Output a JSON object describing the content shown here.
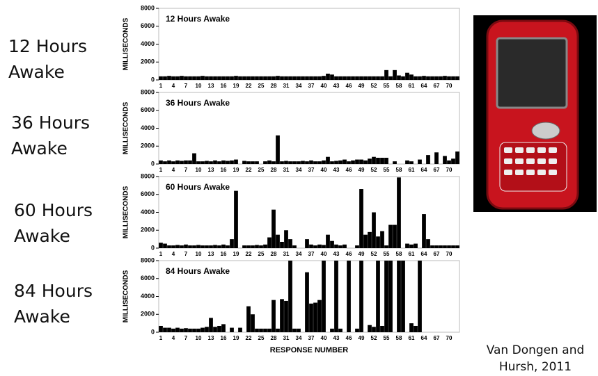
{
  "labels": [
    "12 Hours Awake",
    "36 Hours Awake",
    "60 Hours Awake",
    "84 Hours Awake"
  ],
  "citation": "Van Dongen and Hursh, 2011",
  "chart_data": [
    {
      "type": "bar",
      "title": "12 Hours Awake",
      "ylabel": "MILLISECONDS",
      "color": "#000000",
      "categories": [
        "1",
        null,
        null,
        "4",
        null,
        null,
        "7",
        null,
        null,
        "10",
        null,
        null,
        "13",
        null,
        null,
        "16",
        null,
        null,
        "19",
        null,
        null,
        "22",
        null,
        null,
        "25",
        null,
        null,
        "28",
        null,
        null,
        "31",
        null,
        null,
        "34",
        null,
        null,
        "37",
        null,
        null,
        "40",
        null,
        null,
        "43",
        null,
        null,
        "46",
        null,
        null,
        "49",
        null,
        null,
        "52",
        null,
        null,
        "55",
        null,
        null,
        "58",
        null,
        null,
        "61",
        null,
        null,
        "64",
        null,
        null,
        "67",
        null,
        null,
        "70",
        null,
        null
      ],
      "values": [
        400,
        400,
        450,
        400,
        400,
        450,
        400,
        400,
        400,
        400,
        450,
        400,
        400,
        400,
        400,
        400,
        400,
        400,
        450,
        400,
        400,
        400,
        400,
        400,
        400,
        400,
        400,
        400,
        450,
        400,
        400,
        400,
        400,
        400,
        400,
        400,
        400,
        400,
        400,
        450,
        700,
        600,
        400,
        400,
        400,
        400,
        400,
        400,
        400,
        400,
        400,
        400,
        400,
        400,
        1100,
        400,
        1100,
        500,
        400,
        800,
        600,
        400,
        400,
        450,
        400,
        400,
        400,
        400,
        450,
        400,
        400,
        400
      ],
      "ylim": [
        0,
        8000
      ],
      "yticks": [
        0,
        2000,
        4000,
        6000,
        8000
      ]
    },
    {
      "type": "bar",
      "title": "36 Hours Awake",
      "ylabel": "MILLISECONDS",
      "color": "#000000",
      "categories": [
        "1",
        null,
        null,
        "4",
        null,
        null,
        "7",
        null,
        null,
        "10",
        null,
        null,
        "13",
        null,
        null,
        "16",
        null,
        null,
        "19",
        null,
        null,
        "22",
        null,
        null,
        "25",
        null,
        null,
        "28",
        null,
        null,
        "31",
        null,
        null,
        "34",
        null,
        null,
        "37",
        null,
        null,
        "40",
        null,
        null,
        "43",
        null,
        null,
        "46",
        null,
        null,
        "49",
        null,
        null,
        "52",
        null,
        null,
        "55",
        null,
        null,
        "58",
        null,
        null,
        "61",
        null,
        null,
        "64",
        null,
        null,
        "67",
        null,
        null,
        "70",
        null,
        null
      ],
      "values": [
        400,
        300,
        400,
        300,
        400,
        350,
        400,
        400,
        1200,
        300,
        300,
        350,
        300,
        400,
        300,
        400,
        350,
        400,
        500,
        0,
        350,
        300,
        300,
        300,
        0,
        300,
        400,
        300,
        3200,
        300,
        350,
        300,
        300,
        300,
        350,
        300,
        400,
        300,
        300,
        400,
        800,
        300,
        350,
        400,
        500,
        300,
        400,
        500,
        500,
        400,
        600,
        800,
        700,
        700,
        700,
        0,
        300,
        0,
        0,
        400,
        300,
        0,
        500,
        0,
        1000,
        0,
        1300,
        0,
        900,
        400,
        600,
        1400
      ],
      "ylim": [
        0,
        8000
      ],
      "yticks": [
        0,
        2000,
        4000,
        6000,
        8000
      ]
    },
    {
      "type": "bar",
      "title": "60 Hours Awake",
      "ylabel": "MILLISECONDS",
      "color": "#000000",
      "categories": [
        "1",
        null,
        null,
        "4",
        null,
        null,
        "7",
        null,
        null,
        "10",
        null,
        null,
        "13",
        null,
        null,
        "16",
        null,
        null,
        "19",
        null,
        null,
        "22",
        null,
        null,
        "25",
        null,
        null,
        "28",
        null,
        null,
        "31",
        null,
        null,
        "34",
        null,
        null,
        "37",
        null,
        null,
        "40",
        null,
        null,
        "43",
        null,
        null,
        "46",
        null,
        null,
        "49",
        null,
        null,
        "52",
        null,
        null,
        "55",
        null,
        null,
        "58",
        null,
        null,
        "61",
        null,
        null,
        "64",
        null,
        null,
        "67",
        null,
        null,
        "70",
        null,
        null
      ],
      "values": [
        600,
        500,
        300,
        300,
        350,
        300,
        400,
        300,
        300,
        350,
        300,
        300,
        300,
        350,
        300,
        400,
        300,
        1000,
        6400,
        0,
        300,
        300,
        300,
        350,
        300,
        400,
        1200,
        4300,
        1500,
        700,
        2000,
        1000,
        300,
        0,
        0,
        1000,
        400,
        300,
        400,
        350,
        1500,
        800,
        400,
        300,
        400,
        0,
        0,
        300,
        6600,
        1500,
        1800,
        4000,
        1300,
        1900,
        300,
        2600,
        2600,
        7900,
        0,
        500,
        400,
        500,
        0,
        3800,
        1000,
        300,
        300,
        300,
        300,
        300,
        300,
        300
      ],
      "ylim": [
        0,
        8000
      ],
      "yticks": [
        0,
        2000,
        4000,
        6000,
        8000
      ]
    },
    {
      "type": "bar",
      "title": "84 Hours Awake",
      "ylabel": "MILLISECONDS",
      "xlabel": "RESPONSE NUMBER",
      "color": "#000000",
      "categories": [
        "1",
        null,
        null,
        "4",
        null,
        null,
        "7",
        null,
        null,
        "10",
        null,
        null,
        "13",
        null,
        null,
        "16",
        null,
        null,
        "19",
        null,
        null,
        "22",
        null,
        null,
        "25",
        null,
        null,
        "28",
        null,
        null,
        "31",
        null,
        null,
        "34",
        null,
        null,
        "37",
        null,
        null,
        "40",
        null,
        null,
        "43",
        null,
        null,
        "46",
        null,
        null,
        "49",
        null,
        null,
        "52",
        null,
        null,
        "55",
        null,
        null,
        "58",
        null,
        null,
        "61",
        null,
        null,
        "64",
        null,
        null,
        "67",
        null,
        null,
        "70",
        null,
        null
      ],
      "values": [
        700,
        500,
        500,
        400,
        500,
        400,
        450,
        400,
        400,
        400,
        500,
        600,
        1600,
        600,
        700,
        900,
        0,
        500,
        0,
        500,
        0,
        2900,
        2000,
        400,
        400,
        400,
        400,
        3600,
        400,
        3700,
        3500,
        8000,
        400,
        400,
        0,
        6700,
        3200,
        3300,
        3600,
        8000,
        0,
        400,
        8000,
        400,
        0,
        8000,
        0,
        400,
        8000,
        0,
        800,
        600,
        8000,
        700,
        8000,
        8000,
        0,
        8000,
        8000,
        0,
        1000,
        700,
        8000,
        0,
        0,
        0,
        0,
        0,
        0,
        0,
        0,
        0
      ],
      "ylim": [
        0,
        8000
      ],
      "yticks": [
        0,
        2000,
        4000,
        6000,
        8000
      ]
    }
  ]
}
